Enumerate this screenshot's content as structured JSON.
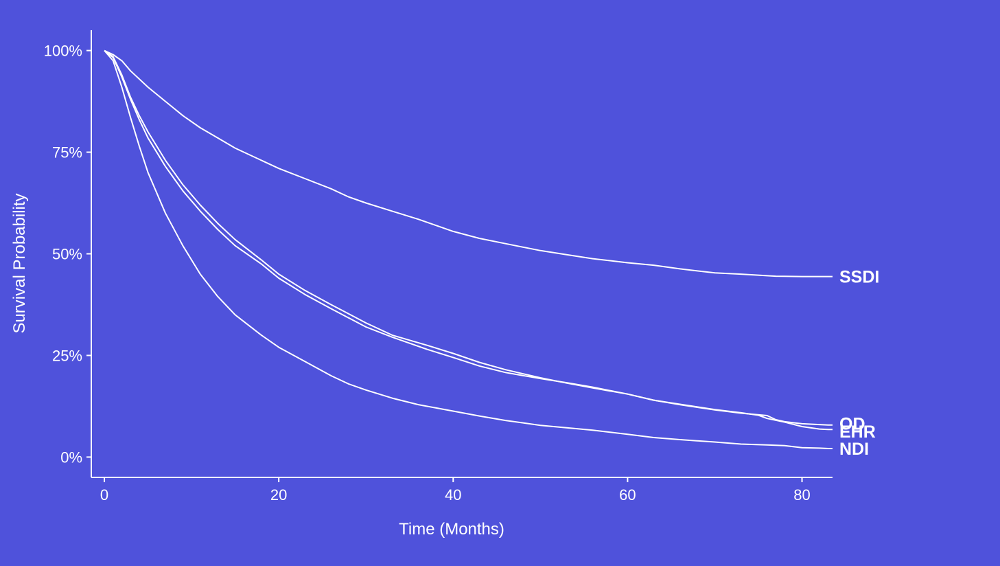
{
  "chart_data": {
    "type": "line",
    "xlabel": "Time (Months)",
    "ylabel": "Survival Probability",
    "xlim": [
      -1.5,
      83.5
    ],
    "ylim": [
      -5,
      105
    ],
    "x_ticks": [
      0,
      20,
      40,
      60,
      80
    ],
    "x_tick_labels": [
      "0",
      "20",
      "40",
      "60",
      "80"
    ],
    "y_ticks": [
      0,
      25,
      50,
      75,
      100
    ],
    "y_tick_labels": [
      "0%",
      "25%",
      "50%",
      "75%",
      "100%"
    ],
    "grid": false,
    "legend": "inline-right",
    "line_color": "#ffffff",
    "background": "#4f52db",
    "series": [
      {
        "name": "SSDI",
        "x": [
          0,
          1,
          2,
          3,
          5,
          7,
          9,
          11,
          13,
          15,
          17,
          20,
          23,
          26,
          28,
          30,
          33,
          36,
          40,
          43,
          46,
          50,
          53,
          56,
          60,
          63,
          66,
          70,
          73,
          77,
          80,
          83
        ],
        "y": [
          100,
          99,
          97.5,
          95,
          91,
          87.5,
          84,
          81,
          78.5,
          76,
          74,
          71,
          68.5,
          66,
          64,
          62.5,
          60.5,
          58.5,
          55.5,
          53.8,
          52.5,
          50.8,
          49.8,
          48.8,
          47.8,
          47.2,
          46.3,
          45.3,
          45,
          44.5,
          44.4,
          44.4
        ]
      },
      {
        "name": "OD",
        "x": [
          0,
          1,
          2,
          3,
          4,
          5,
          7,
          9,
          11,
          13,
          15,
          18,
          20,
          23,
          26,
          30,
          33,
          37,
          40,
          43,
          46,
          50,
          53,
          56,
          60,
          63,
          66,
          70,
          73,
          76,
          77,
          78,
          80,
          83
        ],
        "y": [
          100,
          98.5,
          94,
          88.5,
          84,
          80,
          73,
          67,
          62,
          57.5,
          53.5,
          48.5,
          45,
          41,
          37.5,
          33,
          30,
          27.5,
          25.5,
          23.3,
          21.5,
          19.5,
          18.2,
          17,
          15.5,
          14,
          12.9,
          11.6,
          10.8,
          10.2,
          9.2,
          8.7,
          8.2,
          7.9
        ]
      },
      {
        "name": "EHR",
        "x": [
          0,
          1,
          2,
          3,
          4,
          5,
          7,
          9,
          11,
          13,
          15,
          18,
          20,
          23,
          26,
          30,
          33,
          37,
          40,
          43,
          46,
          50,
          53,
          56,
          60,
          63,
          66,
          70,
          73,
          75,
          76,
          78,
          80,
          82,
          83
        ],
        "y": [
          100,
          98.3,
          93.5,
          88,
          83,
          78.5,
          71.5,
          65.5,
          60.5,
          56,
          52,
          47.5,
          44,
          40,
          36.5,
          32,
          29.5,
          26.5,
          24.5,
          22.4,
          20.8,
          19.3,
          18.3,
          17.2,
          15.5,
          14,
          13,
          11.7,
          10.9,
          10.3,
          9.5,
          8.6,
          7.5,
          6.9,
          6.8
        ]
      },
      {
        "name": "NDI",
        "x": [
          0,
          1,
          2,
          3,
          4,
          5,
          7,
          9,
          11,
          13,
          15,
          18,
          20,
          23,
          26,
          28,
          30,
          33,
          36,
          40,
          43,
          46,
          50,
          53,
          56,
          60,
          63,
          66,
          70,
          73,
          76,
          78,
          80,
          82,
          83
        ],
        "y": [
          100,
          97.5,
          91,
          83.5,
          76.5,
          70,
          60,
          52,
          45,
          39.5,
          35,
          30,
          27,
          23.5,
          20,
          18,
          16.5,
          14.5,
          12.9,
          11.3,
          10.1,
          9,
          7.8,
          7.2,
          6.6,
          5.6,
          4.8,
          4.3,
          3.7,
          3.2,
          3,
          2.8,
          2.3,
          2.2,
          2.1
        ]
      }
    ]
  }
}
